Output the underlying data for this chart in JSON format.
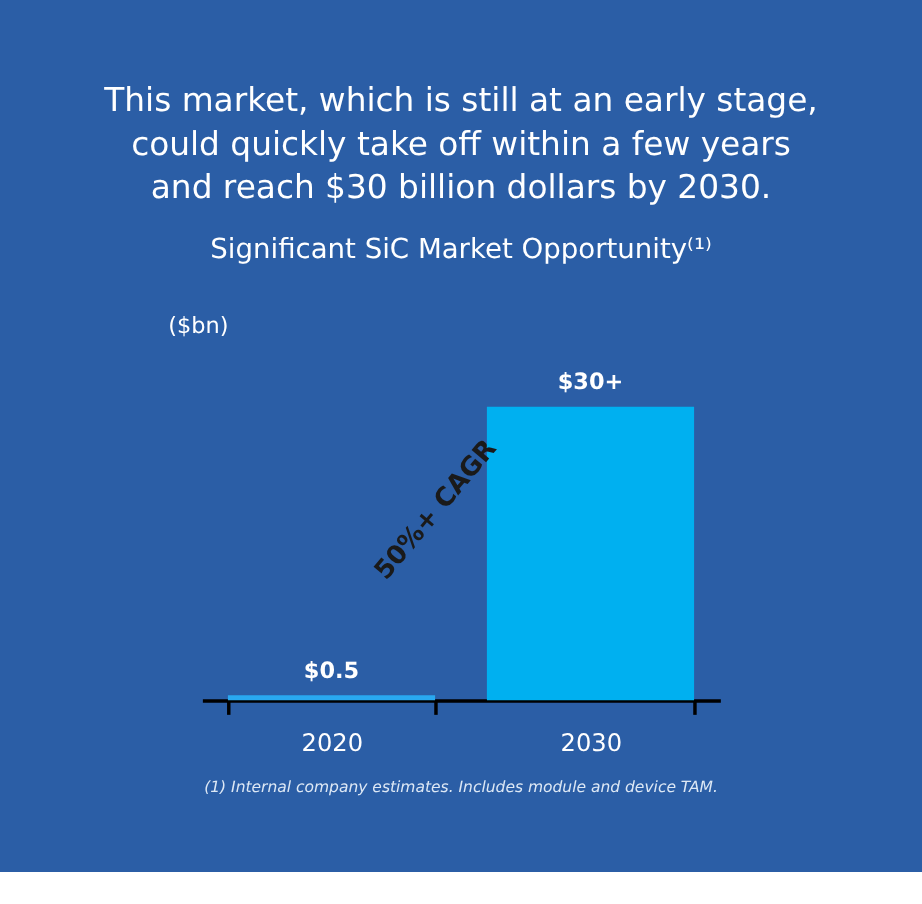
{
  "chart_data": {
    "type": "bar",
    "title": "This market, which is still at an early stage,\ncould quickly take off within a few years\nand reach $30 billion dollars by 2030.",
    "subtitle": "Significant SiC Market Opportunity⁽¹⁾",
    "ylabel": "($bn)",
    "categories": [
      "2020",
      "2030"
    ],
    "values": [
      0.5,
      30
    ],
    "value_labels": [
      "$0.5",
      "$30+"
    ],
    "colors": [
      "#29a8f0",
      "#00b0f0"
    ],
    "annotations": [
      "50%+ CAGR",
      "(1) Internal company estimates. Includes module and device TAM."
    ]
  }
}
